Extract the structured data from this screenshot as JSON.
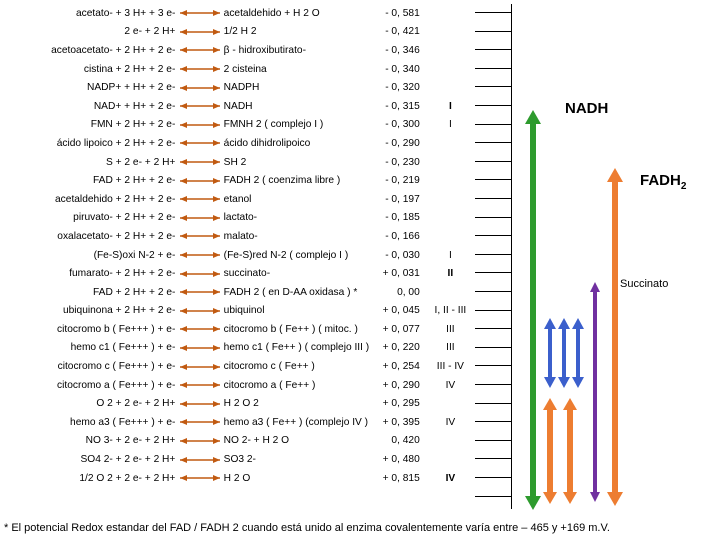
{
  "rows": [
    {
      "l": "acetato-  +   3  H+   +   3  e-",
      "r": "acetaldehido  +  H 2 O",
      "v": "- 0, 581",
      "c": ""
    },
    {
      "l": "2  e-   +    2  H+",
      "r": "1/2  H 2",
      "v": "- 0, 421",
      "c": ""
    },
    {
      "l": "acetoacetato- + 2 H+  + 2 e-",
      "r": "β -  hidroxibutirato-",
      "v": "- 0, 346",
      "c": ""
    },
    {
      "l": "cistina + 2 H+   + 2 e-",
      "r": "2  cisteina",
      "v": "- 0, 340",
      "c": ""
    },
    {
      "l": "NADP+  +   H+   +   2  e-",
      "r": "NADPH",
      "v": "- 0, 320",
      "c": ""
    },
    {
      "l": "NAD+   +   H+  +   2 e-",
      "r": "NADH",
      "v": "- 0, 315",
      "c": "I",
      "bold": true
    },
    {
      "l": "FMN   +  2 H+  +   2  e-",
      "r": "FMNH 2  ( complejo I )",
      "v": "- 0, 300",
      "c": "I"
    },
    {
      "l": "ácido  lipoico  + 2 H+  +  2 e-",
      "r": "ácido dihidrolipoico",
      "v": "- 0, 290",
      "c": ""
    },
    {
      "l": "S  +   2 e-   +   2 H+",
      "r": "SH 2",
      "v": "- 0, 230",
      "c": ""
    },
    {
      "l": "FAD   +  2 H+  +   2 e-",
      "r": "FADH 2  ( coenzima libre )",
      "v": "- 0, 219",
      "c": ""
    },
    {
      "l": "acetaldehido  + 2 H+  + 2 e-",
      "r": "etanol",
      "v": "- 0, 197",
      "c": ""
    },
    {
      "l": "piruvato-  + 2 H+  + 2 e-",
      "r": "lactato-",
      "v": "- 0, 185",
      "c": ""
    },
    {
      "l": "oxalacetato-  + 2 H+  + 2 e-",
      "r": "malato-",
      "v": "- 0, 166",
      "c": ""
    },
    {
      "l": "(Fe-S)oxi N-2  + e-",
      "r": "(Fe-S)red N-2 ( complejo I )",
      "v": "- 0, 030",
      "c": "I"
    },
    {
      "l": "fumarato-  + 2 H+  + 2 e-",
      "r": "succinato-",
      "v": "+ 0, 031",
      "c": "II",
      "bold": true
    },
    {
      "l": "FAD   +  2 H+  +   2  e-",
      "r": "FADH 2  ( en D-AA oxidasa ) *",
      "v": "0, 00",
      "c": ""
    },
    {
      "l": "ubiquinona  + 2 H+  + 2 e-",
      "r": "ubiquinol",
      "v": "+ 0, 045",
      "c": "I, II - III"
    },
    {
      "l": "citocromo b ( Fe+++ )  +  e-",
      "r": "citocromo b ( Fe++ ) ( mitoc. )",
      "v": "+ 0, 077",
      "c": "III"
    },
    {
      "l": "hemo c1 ( Fe+++ ) +  e-",
      "r": "hemo c1 ( Fe++ ) ( complejo III )",
      "v": "+ 0, 220",
      "c": "III"
    },
    {
      "l": "citocromo c ( Fe+++ )  +  e-",
      "r": "citocromo c ( Fe++ )",
      "v": "+ 0, 254",
      "c": "III - IV"
    },
    {
      "l": "citocromo a ( Fe+++ )  +  e-",
      "r": "citocromo a ( Fe++ )",
      "v": "+ 0, 290",
      "c": "IV"
    },
    {
      "l": "O 2 + 2 e-  +  2 H+",
      "r": "H 2 O 2",
      "v": "+ 0, 295",
      "c": ""
    },
    {
      "l": "hemo a3 ( Fe+++ )  +  e-",
      "r": "hemo a3 ( Fe++ ) (complejo IV )",
      "v": "+ 0, 395",
      "c": "IV"
    },
    {
      "l": "NO 3-  +  2 e-  +  2 H+",
      "r": "NO 2-   +   H 2 O",
      "v": "0, 420",
      "c": ""
    },
    {
      "l": "SO4 2-  +  2 e-  + 2 H+",
      "r": "SO3 2-",
      "v": "+ 0, 480",
      "c": ""
    },
    {
      "l": "1/2     O 2  +  2 e-  +  2 H+",
      "r": "H 2 O",
      "v": "+ 0, 815",
      "c": "IV",
      "bold": true
    }
  ],
  "footnote": "* El potencial Redox estandar del FAD / FADH 2 cuando está unido al enzima covalentemente varía entre – 465 y +169 m.V.",
  "labels": {
    "nadh": "NADH",
    "fadh": "FADH",
    "succinato": "Succinato"
  },
  "palette": {
    "green": "#2e9b2e",
    "orange": "#ed7d31",
    "purple": "#7030a0",
    "blue": "#3b5fcc",
    "brown": "#c15a11",
    "small_arrow": "#c15a11"
  },
  "ticks": 27
}
